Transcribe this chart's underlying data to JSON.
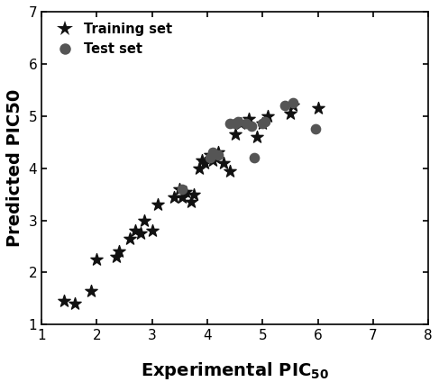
{
  "train_x": [
    1.4,
    1.6,
    1.9,
    2.0,
    2.35,
    2.4,
    2.6,
    2.7,
    2.8,
    2.85,
    3.0,
    3.1,
    3.4,
    3.5,
    3.55,
    3.6,
    3.7,
    3.75,
    3.85,
    3.9,
    3.95,
    4.05,
    4.1,
    4.15,
    4.2,
    4.3,
    4.4,
    4.5,
    4.6,
    4.75,
    4.9,
    5.0,
    5.1,
    5.5,
    5.55,
    6.0
  ],
  "train_y": [
    1.45,
    1.4,
    1.65,
    2.25,
    2.3,
    2.4,
    2.65,
    2.8,
    2.75,
    3.0,
    2.8,
    3.3,
    3.45,
    3.6,
    3.45,
    3.55,
    3.35,
    3.5,
    4.0,
    4.15,
    4.1,
    4.25,
    4.15,
    4.2,
    4.3,
    4.1,
    3.95,
    4.65,
    4.85,
    4.95,
    4.6,
    4.85,
    5.0,
    5.05,
    5.2,
    5.15
  ],
  "test_x": [
    3.55,
    4.05,
    4.1,
    4.2,
    4.4,
    4.5,
    4.55,
    4.7,
    4.8,
    4.85,
    5.0,
    5.05,
    5.4,
    5.55,
    5.95
  ],
  "test_y": [
    3.6,
    4.2,
    4.3,
    4.25,
    4.85,
    4.85,
    4.9,
    4.85,
    4.8,
    4.2,
    4.85,
    4.9,
    5.2,
    5.25,
    4.75
  ],
  "ylabel": "Predicted PIC50",
  "xlim": [
    1,
    8
  ],
  "ylim": [
    1,
    7
  ],
  "xticks": [
    1,
    2,
    3,
    4,
    5,
    6,
    7,
    8
  ],
  "yticks": [
    1,
    2,
    3,
    4,
    5,
    6,
    7
  ],
  "train_color": "#111111",
  "test_color": "#555555",
  "bg_color": "#ffffff",
  "legend_train": "Training set",
  "legend_test": "Test set",
  "star_size": 100,
  "circle_size": 55,
  "tick_labelsize": 11,
  "axis_labelsize": 14
}
